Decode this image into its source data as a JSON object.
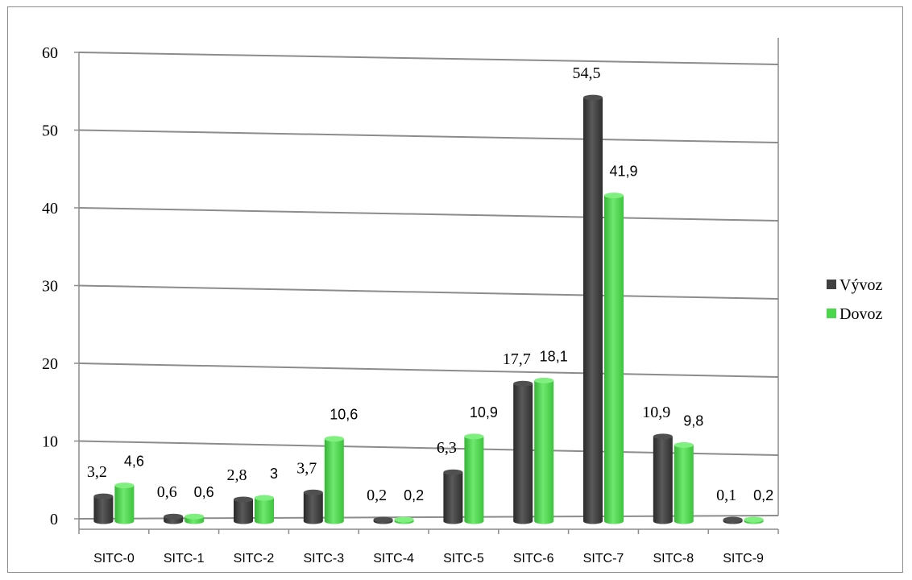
{
  "chart_data": {
    "type": "bar",
    "title": "",
    "xlabel": "",
    "ylabel": "",
    "ylim": [
      0,
      60
    ],
    "yticks": [
      0,
      10,
      20,
      30,
      40,
      50,
      60
    ],
    "grid": true,
    "legend_position": "right",
    "categories": [
      "SITC-0",
      "SITC-1",
      "SITC-2",
      "SITC-3",
      "SITC-4",
      "SITC-5",
      "SITC-6",
      "SITC-7",
      "SITC-8",
      "SITC-9"
    ],
    "series": [
      {
        "name": "Vývoz",
        "color": "#404040",
        "values": [
          3.2,
          0.6,
          2.8,
          3.7,
          0.2,
          6.3,
          17.7,
          54.5,
          10.9,
          0.1
        ],
        "labels": [
          "3,2",
          "0,6",
          "2,8",
          "3,7",
          "0,2",
          "6,3",
          "17,7",
          "54,5",
          "10,9",
          "0,1"
        ]
      },
      {
        "name": "Dovoz",
        "color": "#4cd64c",
        "values": [
          4.6,
          0.6,
          3.0,
          10.6,
          0.2,
          10.9,
          18.1,
          41.9,
          9.8,
          0.2
        ],
        "labels": [
          "4,6",
          "0,6",
          "3",
          "10,6",
          "0,2",
          "10,9",
          "18,1",
          "41,9",
          "9,8",
          "0,2"
        ]
      }
    ]
  }
}
